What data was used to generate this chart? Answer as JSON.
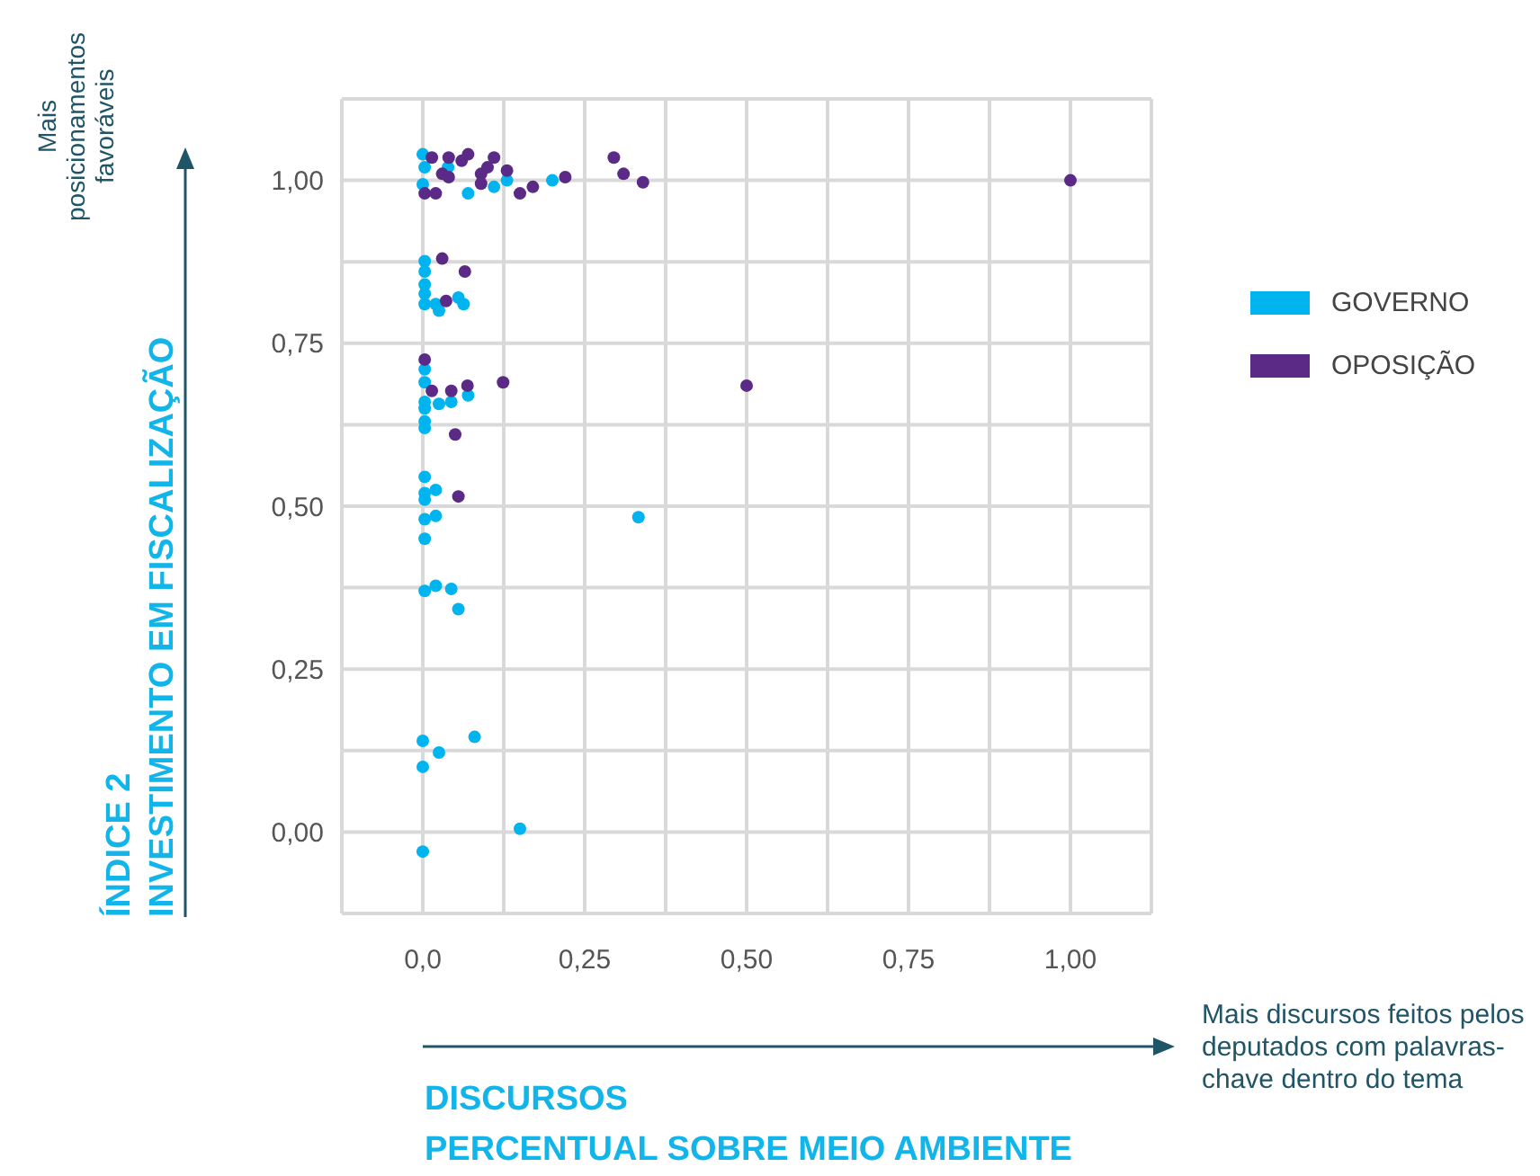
{
  "chart_data": {
    "type": "scatter",
    "ylabel": "ÍNDICE 2\nINVESTIMENTO EM FISCALIZAÇÃO",
    "xlabel": "DISCURSOS\nPERCENTUAL SOBRE MEIO AMBIENTE",
    "annotations": [
      "Mais posicionamentos favoráveis",
      "Mais discursos feitos pelos deputados com palavras-chave dentro do tema"
    ],
    "xlim": [
      -0.125,
      1.125
    ],
    "ylim": [
      -0.125,
      1.125
    ],
    "xticks": [
      {
        "value": 0,
        "label": "0,0"
      },
      {
        "value": 0.125,
        "label": null
      },
      {
        "value": 0.25,
        "label": "0,25"
      },
      {
        "value": 0.375,
        "label": null
      },
      {
        "value": 0.5,
        "label": "0,50"
      },
      {
        "value": 0.625,
        "label": null
      },
      {
        "value": 0.75,
        "label": "0,75"
      },
      {
        "value": 0.875,
        "label": null
      },
      {
        "value": 1,
        "label": "1,00"
      }
    ],
    "yticks": [
      {
        "value": 0,
        "label": "0,00"
      },
      {
        "value": 0.125,
        "label": null
      },
      {
        "value": 0.25,
        "label": "0,25"
      },
      {
        "value": 0.375,
        "label": null
      },
      {
        "value": 0.5,
        "label": "0,50"
      },
      {
        "value": 0.625,
        "label": null
      },
      {
        "value": 0.75,
        "label": "0,75"
      },
      {
        "value": 0.875,
        "label": null
      },
      {
        "value": 1,
        "label": "1,00"
      }
    ],
    "grid": true,
    "legend": "right",
    "marker": "circle",
    "series": [
      {
        "name": "GOVERNO",
        "color": "#00b4f0",
        "x": [
          0,
          0.003,
          0,
          0.039,
          0.07,
          0.11,
          0.13,
          0.2,
          0.003,
          0.003,
          0.003,
          0.003,
          0.003,
          0.02,
          0.025,
          0.055,
          0.063,
          0.003,
          0.003,
          0.003,
          0.003,
          0.003,
          0.003,
          0.025,
          0.044,
          0.07,
          0.003,
          0.003,
          0.003,
          0.02,
          0.003,
          0.02,
          0.003,
          0.333,
          0.003,
          0.02,
          0.044,
          0.055,
          0,
          0.025,
          0.08,
          0,
          0.15,
          0
        ],
        "values": [
          1.04,
          1.02,
          0.994,
          1.02,
          0.98,
          0.99,
          1.0,
          1.0,
          0.876,
          0.86,
          0.84,
          0.826,
          0.81,
          0.81,
          0.8,
          0.82,
          0.81,
          0.71,
          0.69,
          0.66,
          0.65,
          0.63,
          0.62,
          0.657,
          0.66,
          0.67,
          0.545,
          0.52,
          0.51,
          0.525,
          0.48,
          0.485,
          0.45,
          0.483,
          0.37,
          0.378,
          0.373,
          0.342,
          0.14,
          0.122,
          0.146,
          0.1,
          0.005,
          -0.03
        ]
      },
      {
        "name": "OPOSIÇÃO",
        "color": "#5b2a86",
        "x": [
          0.003,
          0.02,
          0.014,
          0.04,
          0.07,
          0.03,
          0.04,
          0.06,
          0.09,
          0.09,
          0.1,
          0.11,
          0.13,
          0.15,
          0.17,
          0.22,
          0.295,
          0.31,
          0.34,
          1.0,
          0.03,
          0.065,
          0.036,
          0.003,
          0.014,
          0.044,
          0.069,
          0.124,
          0.05,
          0.055,
          0.5
        ],
        "values": [
          0.98,
          0.98,
          1.035,
          1.035,
          1.04,
          1.01,
          1.005,
          1.03,
          1.01,
          0.995,
          1.02,
          1.035,
          1.015,
          0.98,
          0.99,
          1.005,
          1.035,
          1.01,
          0.997,
          1.0,
          0.88,
          0.86,
          0.815,
          0.725,
          0.677,
          0.677,
          0.685,
          0.69,
          0.61,
          0.515,
          0.685
        ]
      }
    ]
  }
}
